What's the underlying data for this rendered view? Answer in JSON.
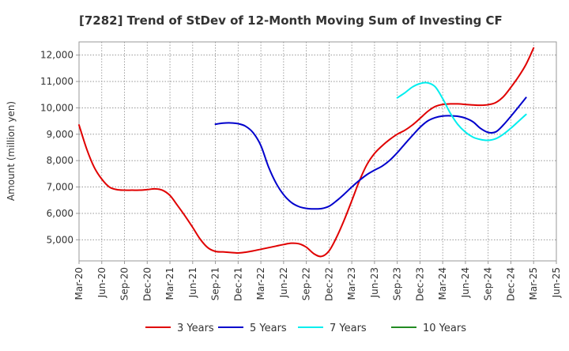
{
  "chart_data": {
    "type": "line",
    "title": "[7282]  Trend of StDev of 12-Month Moving Sum of Investing CF",
    "xlabel": "",
    "ylabel": "Amount (million yen)",
    "ylim": [
      4200,
      12500
    ],
    "yticks": [
      5000,
      6000,
      7000,
      8000,
      9000,
      10000,
      11000,
      12000
    ],
    "ytick_labels": [
      "5,000",
      "6,000",
      "7,000",
      "8,000",
      "9,000",
      "10,000",
      "11,000",
      "12,000"
    ],
    "x_tick_labels": [
      "Mar-20",
      "Jun-20",
      "Sep-20",
      "Dec-20",
      "Mar-21",
      "Jun-21",
      "Sep-21",
      "Dec-21",
      "Mar-22",
      "Jun-22",
      "Sep-22",
      "Dec-22",
      "Mar-23",
      "Jun-23",
      "Sep-23",
      "Dec-23",
      "Mar-24",
      "Jun-24",
      "Sep-24",
      "Dec-24",
      "Mar-25",
      "Jun-25"
    ],
    "grid": true,
    "legend_position": "bottom",
    "series": [
      {
        "name": "3 Years",
        "color": "#e00000",
        "start_index": 0,
        "values": [
          9350,
          8450,
          7750,
          7300,
          7000,
          6900,
          6880,
          6880,
          6880,
          6900,
          6930,
          6880,
          6680,
          6300,
          5900,
          5470,
          5020,
          4700,
          4560,
          4540,
          4520,
          4500,
          4530,
          4580,
          4640,
          4700,
          4760,
          4820,
          4870,
          4850,
          4720,
          4470,
          4370,
          4580,
          5100,
          5750,
          6480,
          7230,
          7850,
          8270,
          8560,
          8800,
          9000,
          9150,
          9350,
          9600,
          9860,
          10050,
          10130,
          10150,
          10150,
          10130,
          10110,
          10100,
          10120,
          10200,
          10420,
          10780,
          11180,
          11650,
          12270
        ]
      },
      {
        "name": "5 Years",
        "color": "#0000cc",
        "start_index": 18,
        "values": [
          9380,
          9420,
          9430,
          9400,
          9300,
          9050,
          8570,
          7770,
          7150,
          6710,
          6420,
          6260,
          6190,
          6170,
          6180,
          6270,
          6480,
          6730,
          7000,
          7250,
          7470,
          7640,
          7790,
          8010,
          8300,
          8630,
          8950,
          9260,
          9500,
          9630,
          9690,
          9700,
          9680,
          9610,
          9470,
          9220,
          9070,
          9090,
          9350,
          9680,
          10030,
          10390
        ]
      },
      {
        "name": "7 Years",
        "color": "#00eeee",
        "start_index": 42,
        "values": [
          10380,
          10570,
          10790,
          10920,
          10950,
          10800,
          10350,
          9800,
          9370,
          9080,
          8890,
          8800,
          8770,
          8830,
          9000,
          9230,
          9490,
          9750
        ]
      },
      {
        "name": "10 Years",
        "color": "#228b22",
        "start_index": 0,
        "values": []
      }
    ]
  }
}
